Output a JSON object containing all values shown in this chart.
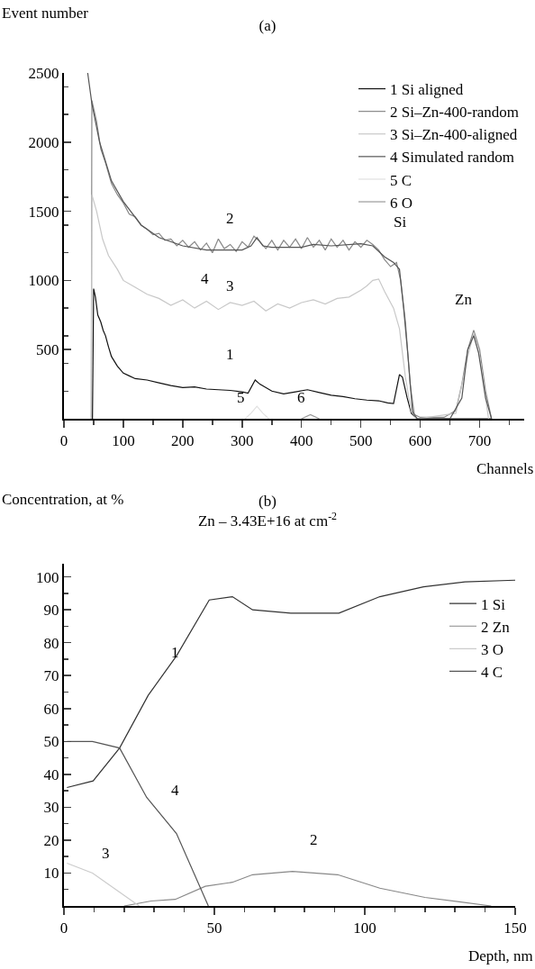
{
  "chart_data": [
    {
      "type": "line",
      "title": "(a)",
      "xlabel": "Channels",
      "ylabel": "Event number",
      "xlim": [
        0,
        775
      ],
      "ylim": [
        0,
        2500
      ],
      "xticks": [
        0,
        100,
        200,
        300,
        400,
        500,
        600,
        700
      ],
      "yticks": [
        500,
        1000,
        1500,
        2000,
        2500
      ],
      "grid": false,
      "legend": "top right",
      "marker": "none",
      "line_style": "solid",
      "annotations": [
        "1",
        "2",
        "3",
        "4",
        "5",
        "6",
        "Si",
        "Zn"
      ],
      "series": [
        {
          "name": "1 Si aligned",
          "color": "#111111",
          "x": [
            48,
            50,
            53,
            57,
            62,
            66,
            70,
            75,
            80,
            90,
            100,
            110,
            120,
            140,
            160,
            180,
            200,
            220,
            240,
            260,
            280,
            300,
            310,
            322,
            330,
            350,
            370,
            390,
            410,
            430,
            450,
            470,
            490,
            510,
            530,
            545,
            555,
            565,
            570,
            578,
            585,
            595,
            720
          ],
          "values": [
            0,
            940,
            880,
            750,
            700,
            640,
            600,
            520,
            450,
            380,
            330,
            310,
            290,
            280,
            260,
            240,
            225,
            230,
            215,
            210,
            205,
            195,
            185,
            280,
            250,
            200,
            180,
            195,
            210,
            190,
            170,
            160,
            145,
            135,
            130,
            115,
            110,
            320,
            300,
            150,
            40,
            0,
            0
          ]
        },
        {
          "name": "2 Si–Zn-400-random",
          "color": "#888888",
          "x": [
            46,
            47,
            55,
            62,
            70,
            80,
            90,
            100,
            110,
            120,
            130,
            140,
            150,
            160,
            170,
            180,
            190,
            200,
            210,
            220,
            230,
            240,
            250,
            260,
            270,
            280,
            290,
            300,
            310,
            320,
            330,
            340,
            350,
            360,
            370,
            380,
            390,
            400,
            410,
            420,
            430,
            440,
            450,
            460,
            470,
            480,
            490,
            500,
            510,
            520,
            530,
            540,
            550,
            560,
            567,
            575,
            583,
            590,
            600,
            640,
            660,
            670,
            680,
            690,
            700,
            710,
            720
          ],
          "values": [
            0,
            2300,
            2150,
            1950,
            1850,
            1700,
            1620,
            1560,
            1480,
            1460,
            1400,
            1370,
            1330,
            1340,
            1290,
            1300,
            1250,
            1290,
            1240,
            1280,
            1220,
            1270,
            1200,
            1300,
            1230,
            1260,
            1210,
            1280,
            1240,
            1320,
            1280,
            1230,
            1290,
            1220,
            1290,
            1240,
            1300,
            1230,
            1310,
            1240,
            1290,
            1220,
            1300,
            1240,
            1290,
            1220,
            1280,
            1240,
            1290,
            1260,
            1220,
            1150,
            1100,
            1130,
            1000,
            700,
            250,
            30,
            10,
            10,
            60,
            250,
            500,
            640,
            500,
            200,
            0
          ]
        },
        {
          "name": "3 Si–Zn-400-aligned",
          "color": "#c8c8c8",
          "x": [
            46,
            47,
            55,
            65,
            75,
            90,
            100,
            120,
            140,
            160,
            180,
            200,
            220,
            240,
            260,
            280,
            300,
            320,
            340,
            360,
            380,
            400,
            420,
            440,
            460,
            480,
            500,
            510,
            520,
            530,
            540,
            555,
            565,
            575,
            585,
            595,
            660,
            680,
            690,
            700,
            715
          ],
          "values": [
            0,
            1620,
            1500,
            1300,
            1180,
            1080,
            1000,
            950,
            900,
            870,
            820,
            860,
            800,
            850,
            790,
            840,
            820,
            850,
            780,
            830,
            800,
            840,
            860,
            830,
            870,
            880,
            930,
            960,
            1000,
            1010,
            920,
            800,
            650,
            300,
            50,
            0,
            40,
            450,
            620,
            450,
            0
          ]
        },
        {
          "name": "4 Simulated random",
          "color": "#555555",
          "x": [
            40,
            47,
            60,
            80,
            100,
            130,
            160,
            200,
            240,
            300,
            315,
            325,
            335,
            350,
            400,
            420,
            450,
            500,
            520,
            540,
            555,
            565,
            572,
            579,
            587,
            595,
            650,
            670,
            680,
            690,
            698,
            710,
            720
          ],
          "values": [
            2500,
            2280,
            2000,
            1720,
            1570,
            1400,
            1310,
            1250,
            1220,
            1220,
            1250,
            1310,
            1250,
            1240,
            1240,
            1260,
            1250,
            1265,
            1250,
            1170,
            1130,
            1080,
            800,
            470,
            50,
            0,
            0,
            150,
            500,
            600,
            480,
            150,
            0
          ]
        },
        {
          "name": "5 C",
          "color": "#e0e0e0",
          "x": [
            305,
            315,
            325,
            335,
            345
          ],
          "values": [
            0,
            40,
            90,
            40,
            0
          ]
        },
        {
          "name": "6 O",
          "color": "#999999",
          "x": [
            400,
            415,
            430
          ],
          "values": [
            0,
            30,
            0
          ]
        }
      ]
    },
    {
      "type": "line",
      "title": "(b)",
      "subtitle": "Zn – 3.43E+16 at cm$^{-2}$",
      "xlabel": "Depth, nm",
      "ylabel": "Concentration, at %",
      "xlim": [
        0,
        150
      ],
      "ylim": [
        0,
        104
      ],
      "xticks": [
        0,
        50,
        100,
        150
      ],
      "yticks": [
        10,
        20,
        30,
        40,
        50,
        60,
        70,
        80,
        90,
        100
      ],
      "grid": false,
      "legend": "top right",
      "marker": "none",
      "line_style": "solid",
      "annotations": [
        "1",
        "2",
        "3",
        "4"
      ],
      "series": [
        {
          "name": "1 Si",
          "color": "#333333",
          "x": [
            1,
            9.7,
            18.5,
            28,
            37.4,
            48.3,
            56,
            62.7,
            75.4,
            91.4,
            105,
            119.5,
            133.3,
            150
          ],
          "values": [
            36,
            38,
            48,
            64,
            76,
            93,
            94,
            90,
            89,
            89,
            94,
            97,
            98.5,
            99
          ]
        },
        {
          "name": "2 Zn",
          "color": "#888888",
          "x": [
            20,
            29,
            37,
            47,
            56,
            62.7,
            76,
            91,
            105,
            120,
            142
          ],
          "values": [
            0,
            1.5,
            2,
            6,
            7.2,
            9.5,
            10.5,
            9.5,
            5.4,
            2.6,
            0
          ]
        },
        {
          "name": "3 O",
          "color": "#cccccc",
          "x": [
            1,
            9.5,
            25
          ],
          "values": [
            13,
            10,
            0
          ]
        },
        {
          "name": "4 C",
          "color": "#555555",
          "x": [
            1,
            9.5,
            18.5,
            27.5,
            37.4,
            48
          ],
          "values": [
            50,
            50,
            48,
            33,
            22,
            0
          ]
        }
      ]
    }
  ]
}
